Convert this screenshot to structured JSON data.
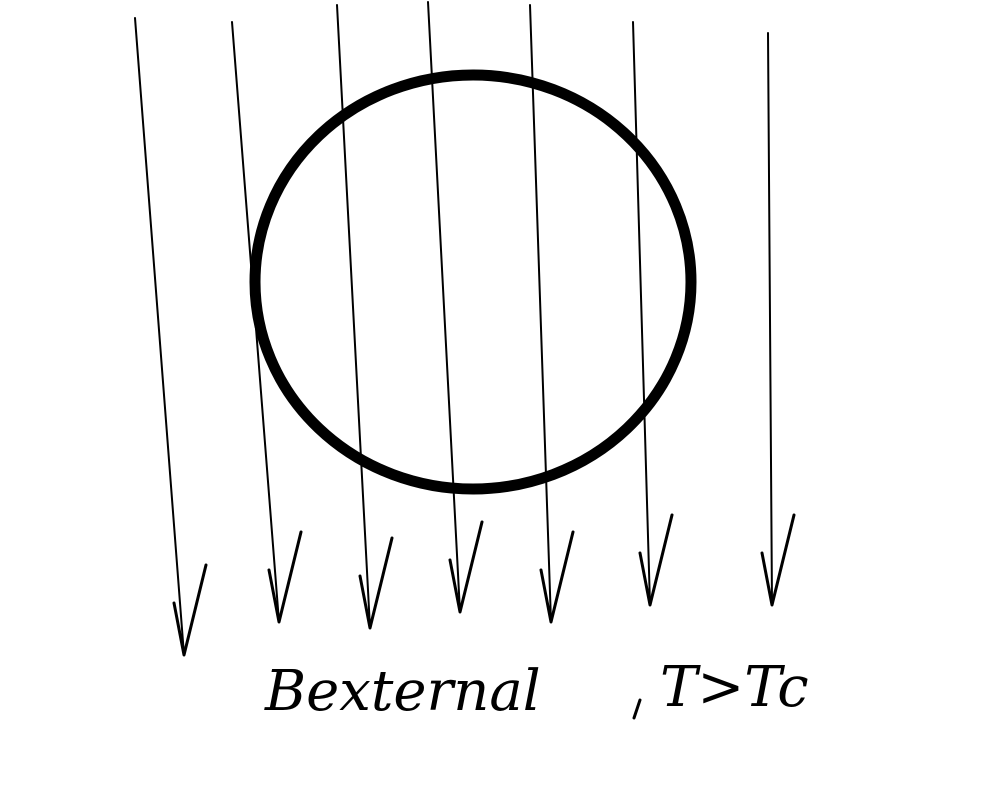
{
  "diagram": {
    "field_label": "Bexternal",
    "condition_label": "T>Tc",
    "field_line_count": 7,
    "line_color": "#000000",
    "background_color": "#ffffff"
  }
}
